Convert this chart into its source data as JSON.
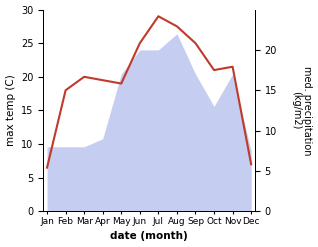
{
  "months": [
    "Jan",
    "Feb",
    "Mar",
    "Apr",
    "May",
    "Jun",
    "Jul",
    "Aug",
    "Sep",
    "Oct",
    "Nov",
    "Dec"
  ],
  "temperature": [
    6.5,
    18.0,
    20.0,
    19.5,
    19.0,
    25.0,
    29.0,
    27.5,
    25.0,
    21.0,
    21.5,
    7.0
  ],
  "precipitation": [
    8.0,
    8.0,
    8.0,
    9.0,
    17.0,
    20.0,
    20.0,
    22.0,
    17.0,
    13.0,
    17.0,
    7.5
  ],
  "temp_color": "#c0392b",
  "precip_fill_color": "#c5cdf0",
  "xlabel": "date (month)",
  "ylabel_left": "max temp (C)",
  "ylabel_right": "med. precipitation\n(kg/m2)",
  "ylim_left": [
    0,
    30
  ],
  "ylim_right": [
    0,
    25
  ],
  "right_ticks": [
    0,
    5,
    10,
    15,
    20
  ],
  "left_ticks": [
    0,
    5,
    10,
    15,
    20,
    25,
    30
  ],
  "bg_color": "#ffffff"
}
